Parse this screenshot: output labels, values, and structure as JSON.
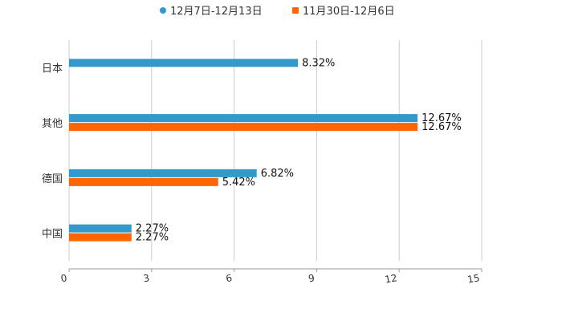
{
  "chart_data": {
    "type": "bar",
    "orientation": "horizontal",
    "categories": [
      "日本",
      "其他",
      "德国",
      "中国"
    ],
    "series": [
      {
        "name": "12月7日-12月13日",
        "color": "#3399cc",
        "values": [
          8.32,
          12.67,
          6.82,
          2.27
        ],
        "labels": [
          "8.32%",
          "12.67%",
          "6.82%",
          "2.27%"
        ]
      },
      {
        "name": "11月30日-12月6日",
        "color": "#ff6600",
        "values": [
          null,
          12.67,
          5.42,
          2.27
        ],
        "labels": [
          null,
          "12.67%",
          "5.42%",
          "2.27%"
        ]
      }
    ],
    "xlim": [
      0,
      15
    ],
    "xticks": [
      "0",
      "3",
      "6",
      "9",
      "12",
      "15"
    ],
    "grid": true,
    "legend": "top-center",
    "title": "",
    "xlabel": "",
    "ylabel": ""
  }
}
